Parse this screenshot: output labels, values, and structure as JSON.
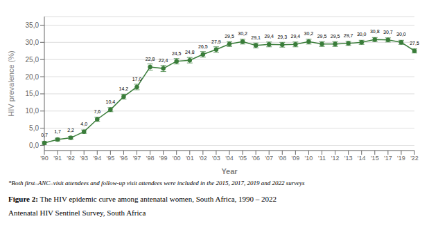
{
  "chart_data": {
    "type": "line",
    "categories": [
      "'90",
      "'91",
      "'92",
      "'93",
      "'94",
      "'95",
      "'96",
      "'97",
      "'98",
      "'99",
      "'00",
      "'01",
      "'02",
      "'03",
      "'04",
      "'05",
      "'06",
      "'07",
      "'08",
      "'09",
      "'10",
      "'11",
      "'12",
      "'13",
      "'14",
      "'15",
      "'17",
      "'19",
      "'22"
    ],
    "values": [
      0.7,
      1.7,
      2.2,
      4.0,
      7.6,
      10.4,
      14.2,
      17.0,
      22.8,
      22.4,
      24.5,
      24.8,
      26.5,
      27.9,
      29.5,
      30.2,
      29.1,
      29.4,
      29.3,
      29.4,
      30.2,
      29.5,
      29.5,
      29.7,
      30.0,
      30.8,
      30.7,
      30.0,
      27.5
    ],
    "value_labels": [
      "0,7",
      "1,7",
      "2,2",
      "4,0",
      "7,6",
      "10,4",
      "14,2",
      "17,0",
      "22,8",
      "22,4",
      "24,5",
      "24,8",
      "26,5",
      "27,9",
      "29,5",
      "30,2",
      "29,1",
      "29,4",
      "29,3",
      "29,4",
      "30,2",
      "29,5",
      "29,5",
      "29,7",
      "30,0",
      "30,8",
      "30,7",
      "30,0",
      "27,5"
    ],
    "errors": [
      0.4,
      0.4,
      0.4,
      0.5,
      0.6,
      0.6,
      0.7,
      0.8,
      0.9,
      0.9,
      0.8,
      0.8,
      0.8,
      0.8,
      0.7,
      0.7,
      0.7,
      0.7,
      0.7,
      0.7,
      0.7,
      0.7,
      0.7,
      0.6,
      0.6,
      0.6,
      0.6,
      0.6,
      0.6
    ],
    "color": "#3a7d3a",
    "marker": "circle",
    "data_labels": true,
    "xlabel": "Year",
    "ylabel": "HIV prevalence (%)",
    "ylim": [
      -1.5,
      37.5
    ],
    "yticks": [
      {
        "value": 0.0,
        "label": "0,0"
      },
      {
        "value": 5.0,
        "label": "5,0"
      },
      {
        "value": 10.0,
        "label": "10,0"
      },
      {
        "value": 15.0,
        "label": "15,0"
      },
      {
        "value": 20.0,
        "label": "20,0"
      },
      {
        "value": 25.0,
        "label": "25,0"
      },
      {
        "value": 30.0,
        "label": "30,0"
      },
      {
        "value": 35.0,
        "label": "35,0"
      }
    ],
    "grid": true,
    "footnote": "*Both first–ANC–visit attendees and follow-up visit attendees were included in the 2015, 2017, 2019 and 2022 surveys",
    "caption_label": "Figure 2:",
    "caption": "The HIV epidemic curve among antenatal women, South Africa, 1990 – 2022",
    "caption2": "Antenatal HIV Sentinel Survey, South Africa"
  }
}
